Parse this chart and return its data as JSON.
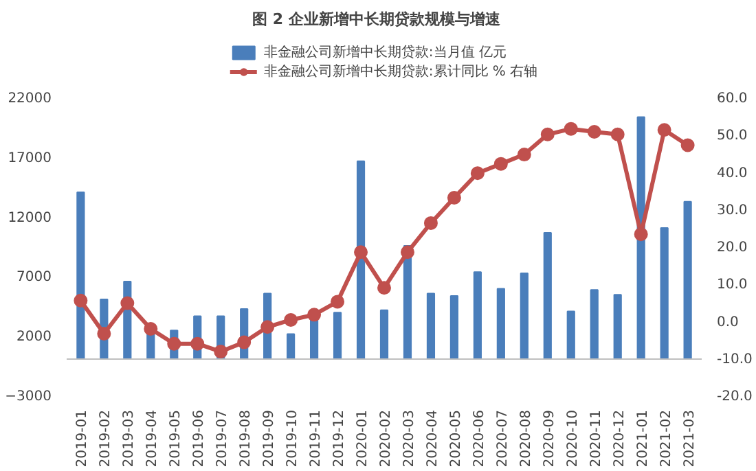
{
  "chart_data": {
    "type": "bar",
    "title": "图 2    企业新增中长期贷款规模与增速",
    "categories": [
      "2019-01",
      "2019-02",
      "2019-03",
      "2019-04",
      "2019-05",
      "2019-06",
      "2019-07",
      "2019-08",
      "2019-09",
      "2019-10",
      "2019-11",
      "2019-12",
      "2020-01",
      "2020-02",
      "2020-03",
      "2020-04",
      "2020-05",
      "2020-06",
      "2020-07",
      "2020-08",
      "2020-09",
      "2020-10",
      "2020-11",
      "2020-12",
      "2021-01",
      "2021-02",
      "2021-03"
    ],
    "series": [
      {
        "name": "非金融公司新增中长期贷款:当月值 亿元",
        "color": "#4a7ebb",
        "values": [
          14000,
          5000,
          6500,
          2600,
          2400,
          3600,
          3600,
          4200,
          5500,
          2100,
          3600,
          3900,
          16600,
          4100,
          9500,
          5500,
          5300,
          7300,
          5900,
          7200,
          10600,
          4000,
          5800,
          5400,
          20300,
          11000,
          13200
        ]
      },
      {
        "name": "非金融公司新增中长期贷款:累计同比 % 右轴",
        "type": "line",
        "axis": "y2",
        "color": "#c0504d",
        "values": [
          5.3,
          -3.6,
          4.6,
          -2.3,
          -6.3,
          -6.3,
          -8.4,
          -5.9,
          -1.8,
          0.1,
          1.5,
          5.0,
          18.3,
          8.7,
          18.3,
          26.1,
          32.9,
          39.5,
          42.0,
          44.5,
          49.9,
          51.4,
          50.6,
          49.9,
          23.1,
          51.1,
          47.0
        ]
      }
    ],
    "ylim": [
      -3000,
      22000
    ],
    "yticks": [
      -3000,
      2000,
      7000,
      12000,
      17000,
      22000
    ],
    "y2lim": [
      -20,
      60
    ],
    "y2ticks": [
      {
        "value": -20,
        "label": "-20.0"
      },
      {
        "value": -10,
        "label": "-10.0"
      },
      {
        "value": 0,
        "label": "0.0"
      },
      {
        "value": 10,
        "label": "10.0"
      },
      {
        "value": 20,
        "label": "20.0"
      },
      {
        "value": 30,
        "label": "30.0"
      },
      {
        "value": 40,
        "label": "40.0"
      },
      {
        "value": 50,
        "label": "50.0"
      },
      {
        "value": 60,
        "label": "60.0"
      }
    ],
    "ref_lines": [
      {
        "axis": "y",
        "value": 0,
        "color": "#bfbfbf"
      }
    ],
    "marker": "circle",
    "line_style": "solid",
    "grid": false,
    "legend": "top"
  }
}
